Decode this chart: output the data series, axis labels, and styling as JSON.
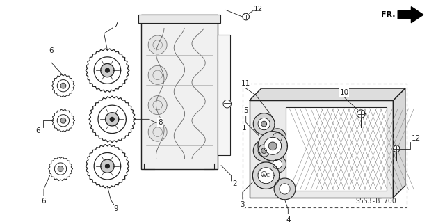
{
  "bg_color": "#ffffff",
  "line_color": "#222222",
  "diagram_code": "S5S3-B1700",
  "figsize": [
    6.4,
    3.19
  ],
  "dpi": 100
}
